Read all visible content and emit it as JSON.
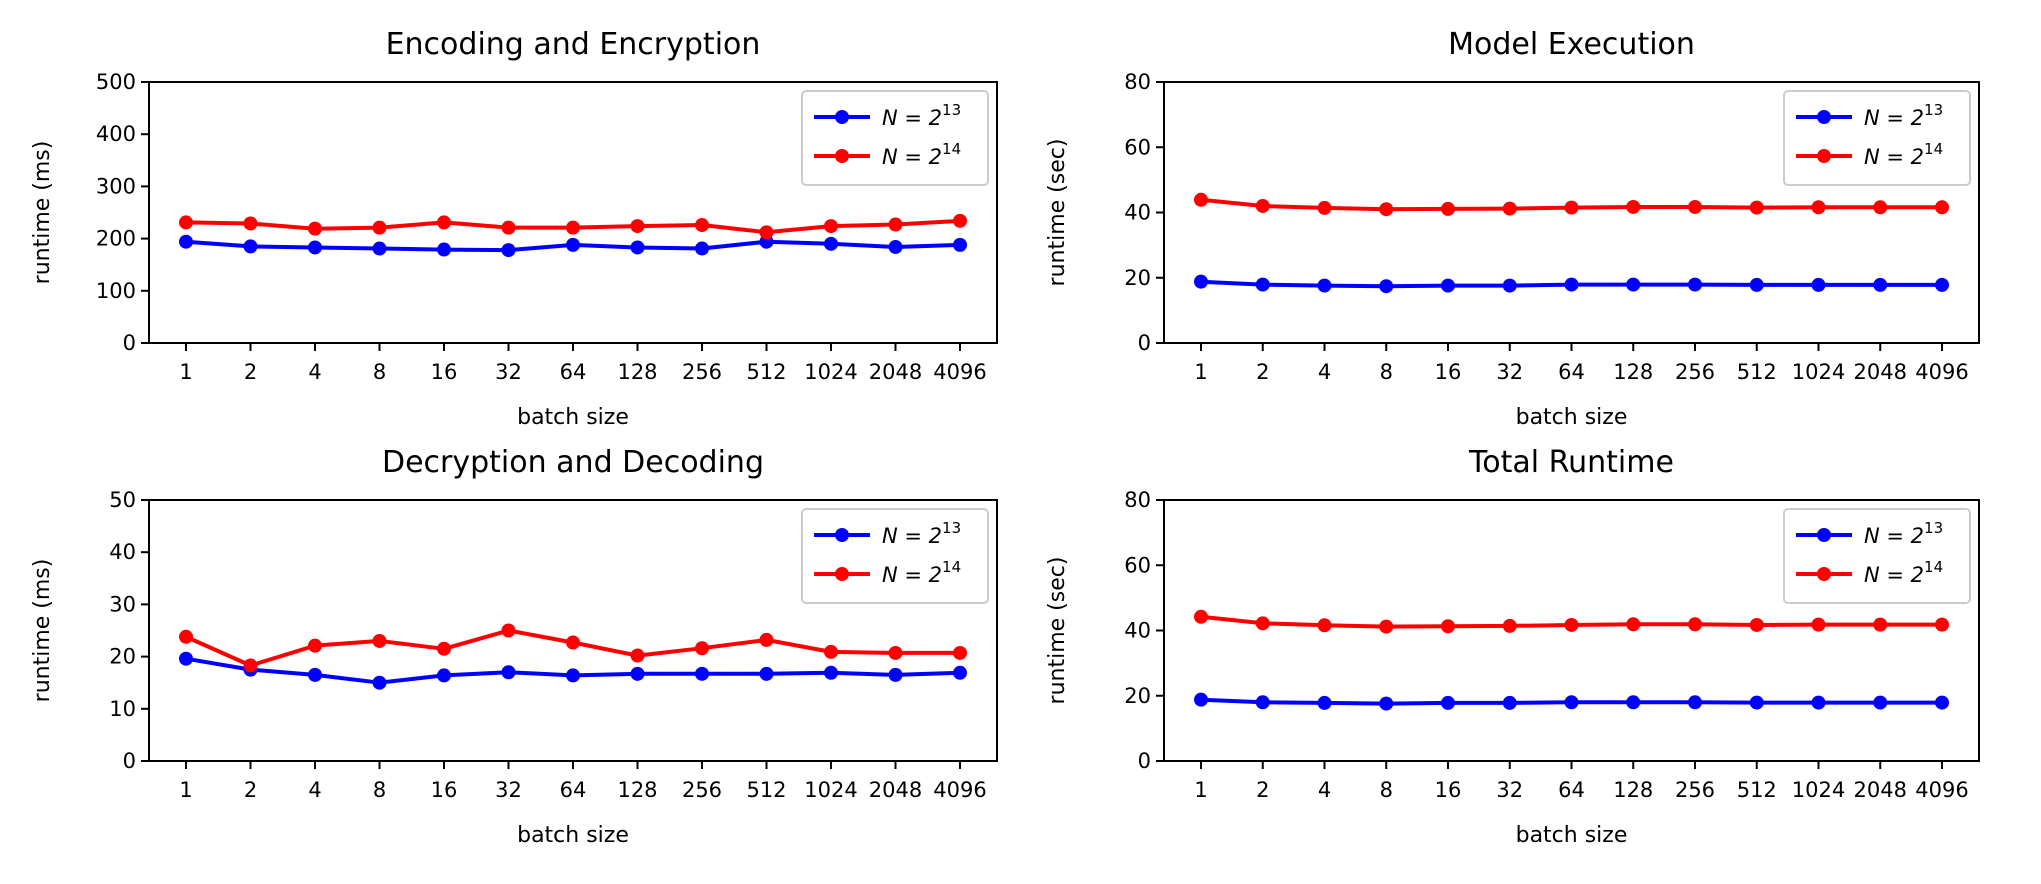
{
  "figure": {
    "background": "#ffffff",
    "colors": {
      "series_1": "#0000ff",
      "series_2": "#ff0000"
    }
  },
  "chart_data": [
    {
      "type": "line",
      "title": "Encoding and Encryption",
      "xlabel": "batch size",
      "ylabel": "runtime (ms)",
      "categories": [
        "1",
        "2",
        "4",
        "8",
        "16",
        "32",
        "64",
        "128",
        "256",
        "512",
        "1024",
        "2048",
        "4096"
      ],
      "ylim": [
        0,
        500
      ],
      "yticks": [
        0,
        100,
        200,
        300,
        400,
        500
      ],
      "ytick_labels": [
        "0",
        "100",
        "200",
        "300",
        "400",
        "500"
      ],
      "legend_position": "top-right",
      "grid": false,
      "series": [
        {
          "name": "N = 2^13",
          "legend_base": "N = 2",
          "legend_exp": "13",
          "color": "#0000ff",
          "values": [
            194,
            185,
            183,
            181,
            179,
            178,
            188,
            183,
            181,
            194,
            190,
            184,
            188
          ]
        },
        {
          "name": "N = 2^14",
          "legend_base": "N = 2",
          "legend_exp": "14",
          "color": "#ff0000",
          "values": [
            231,
            229,
            219,
            221,
            231,
            221,
            221,
            224,
            226,
            212,
            224,
            227,
            234
          ]
        }
      ]
    },
    {
      "type": "line",
      "title": "Model Execution",
      "xlabel": "batch size",
      "ylabel": "runtime (sec)",
      "categories": [
        "1",
        "2",
        "4",
        "8",
        "16",
        "32",
        "64",
        "128",
        "256",
        "512",
        "1024",
        "2048",
        "4096"
      ],
      "ylim": [
        0,
        80
      ],
      "yticks": [
        0,
        20,
        40,
        60,
        80
      ],
      "ytick_labels": [
        "0",
        "20",
        "40",
        "60",
        "80"
      ],
      "legend_position": "top-right",
      "grid": false,
      "series": [
        {
          "name": "N = 2^13",
          "legend_base": "N = 2",
          "legend_exp": "13",
          "color": "#0000ff",
          "values": [
            18.8,
            17.9,
            17.6,
            17.4,
            17.6,
            17.6,
            17.9,
            17.9,
            17.9,
            17.8,
            17.8,
            17.8,
            17.8
          ]
        },
        {
          "name": "N = 2^14",
          "legend_base": "N = 2",
          "legend_exp": "14",
          "color": "#ff0000",
          "values": [
            43.9,
            42.0,
            41.4,
            41.0,
            41.1,
            41.2,
            41.5,
            41.7,
            41.7,
            41.5,
            41.6,
            41.6,
            41.6
          ]
        }
      ]
    },
    {
      "type": "line",
      "title": "Decryption and Decoding",
      "xlabel": "batch size",
      "ylabel": "runtime (ms)",
      "categories": [
        "1",
        "2",
        "4",
        "8",
        "16",
        "32",
        "64",
        "128",
        "256",
        "512",
        "1024",
        "2048",
        "4096"
      ],
      "ylim": [
        0,
        50
      ],
      "yticks": [
        0,
        10,
        20,
        30,
        40,
        50
      ],
      "ytick_labels": [
        "0",
        "10",
        "20",
        "30",
        "40",
        "50"
      ],
      "legend_position": "top-right",
      "grid": false,
      "series": [
        {
          "name": "N = 2^13",
          "legend_base": "N = 2",
          "legend_exp": "13",
          "color": "#0000ff",
          "values": [
            19.6,
            17.5,
            16.5,
            15.0,
            16.4,
            17.0,
            16.4,
            16.7,
            16.7,
            16.7,
            16.9,
            16.5,
            16.9
          ]
        },
        {
          "name": "N = 2^14",
          "legend_base": "N = 2",
          "legend_exp": "14",
          "color": "#ff0000",
          "values": [
            23.8,
            18.3,
            22.1,
            23.0,
            21.5,
            25.0,
            22.7,
            20.2,
            21.6,
            23.2,
            20.9,
            20.7,
            20.7
          ]
        }
      ]
    },
    {
      "type": "line",
      "title": "Total Runtime",
      "xlabel": "batch size",
      "ylabel": "runtime (sec)",
      "categories": [
        "1",
        "2",
        "4",
        "8",
        "16",
        "32",
        "64",
        "128",
        "256",
        "512",
        "1024",
        "2048",
        "4096"
      ],
      "ylim": [
        0,
        80
      ],
      "yticks": [
        0,
        20,
        40,
        60,
        80
      ],
      "ytick_labels": [
        "0",
        "20",
        "40",
        "60",
        "80"
      ],
      "legend_position": "top-right",
      "grid": false,
      "series": [
        {
          "name": "N = 2^13",
          "legend_base": "N = 2",
          "legend_exp": "13",
          "color": "#0000ff",
          "values": [
            18.8,
            18.0,
            17.8,
            17.6,
            17.8,
            17.8,
            18.0,
            18.0,
            18.0,
            17.9,
            17.9,
            17.9,
            17.9
          ]
        },
        {
          "name": "N = 2^14",
          "legend_base": "N = 2",
          "legend_exp": "14",
          "color": "#ff0000",
          "values": [
            44.2,
            42.2,
            41.6,
            41.2,
            41.3,
            41.4,
            41.7,
            41.9,
            41.9,
            41.7,
            41.8,
            41.8,
            41.8
          ]
        }
      ]
    }
  ]
}
